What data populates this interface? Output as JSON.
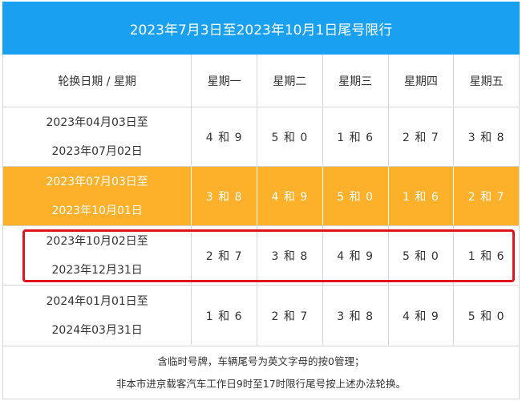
{
  "title": "2023年7月3日至2023年10月1日尾号限行",
  "headers": [
    "轮换日期 / 星期",
    "星期一",
    "星期二",
    "星期三",
    "星期四",
    "星期五"
  ],
  "rows": [
    {
      "start": "2023年04月03日至",
      "end": "2023年07月02日",
      "mon": "4 和 9",
      "tue": "5 和 0",
      "wed": "1 和 6",
      "thu": "2 和 7",
      "fri": "3 和 8"
    },
    {
      "start": "2023年07月03日至",
      "end": "2023年10月01日",
      "mon": "3 和 8",
      "tue": "4 和 9",
      "wed": "5 和 0",
      "thu": "1 和 6",
      "fri": "2 和 7"
    },
    {
      "start": "2023年10月02日至",
      "end": "2023年12月31日",
      "mon": "2 和 7",
      "tue": "3 和 8",
      "wed": "4 和 9",
      "thu": "5 和 0",
      "fri": "1 和 6"
    },
    {
      "start": "2024年01月01日至",
      "end": "2024年03月31日",
      "mon": "1 和 6",
      "tue": "2 和 7",
      "wed": "3 和 8",
      "thu": "4 和 9",
      "fri": "5 和 0"
    }
  ],
  "notes": [
    "含临时号牌，车辆尾号为英文字母的按0管理；",
    "非本市进京载客汽车工作日9时至17时限行尾号按上述办法轮换。"
  ],
  "colors": {
    "header_bg": "#1aa0f0",
    "current_row_bg": "#fdb02a",
    "highlight_border": "#e0141e"
  }
}
